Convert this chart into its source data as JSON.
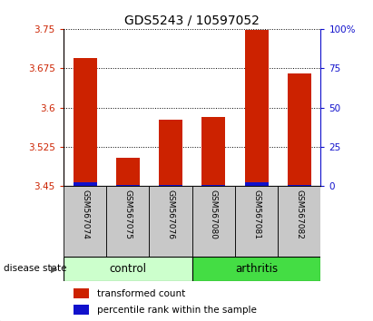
{
  "title": "GDS5243 / 10597052",
  "samples": [
    "GSM567074",
    "GSM567075",
    "GSM567076",
    "GSM567080",
    "GSM567081",
    "GSM567082"
  ],
  "red_values": [
    3.695,
    3.505,
    3.577,
    3.582,
    3.748,
    3.665
  ],
  "blue_values": [
    3.457,
    3.452,
    3.453,
    3.453,
    3.457,
    3.453
  ],
  "ymin": 3.45,
  "ymax": 3.75,
  "yticks_left": [
    3.45,
    3.525,
    3.6,
    3.675,
    3.75
  ],
  "yticks_left_labels": [
    "3.45",
    "3.525",
    "3.6",
    "3.675",
    "3.75"
  ],
  "yticks_right": [
    0,
    25,
    50,
    75,
    100
  ],
  "yticks_right_labels": [
    "0",
    "25",
    "50",
    "75",
    "100%"
  ],
  "red_color": "#cc2200",
  "blue_color": "#1111cc",
  "label_bg_color": "#c8c8c8",
  "group_colors": [
    "#ccffcc",
    "#44dd44"
  ],
  "group_labels": [
    "control",
    "arthritis"
  ],
  "xlabel_label": "disease state",
  "legend_red": "transformed count",
  "legend_blue": "percentile rank within the sample",
  "left_tick_color": "#cc2200",
  "right_tick_color": "#1111cc"
}
